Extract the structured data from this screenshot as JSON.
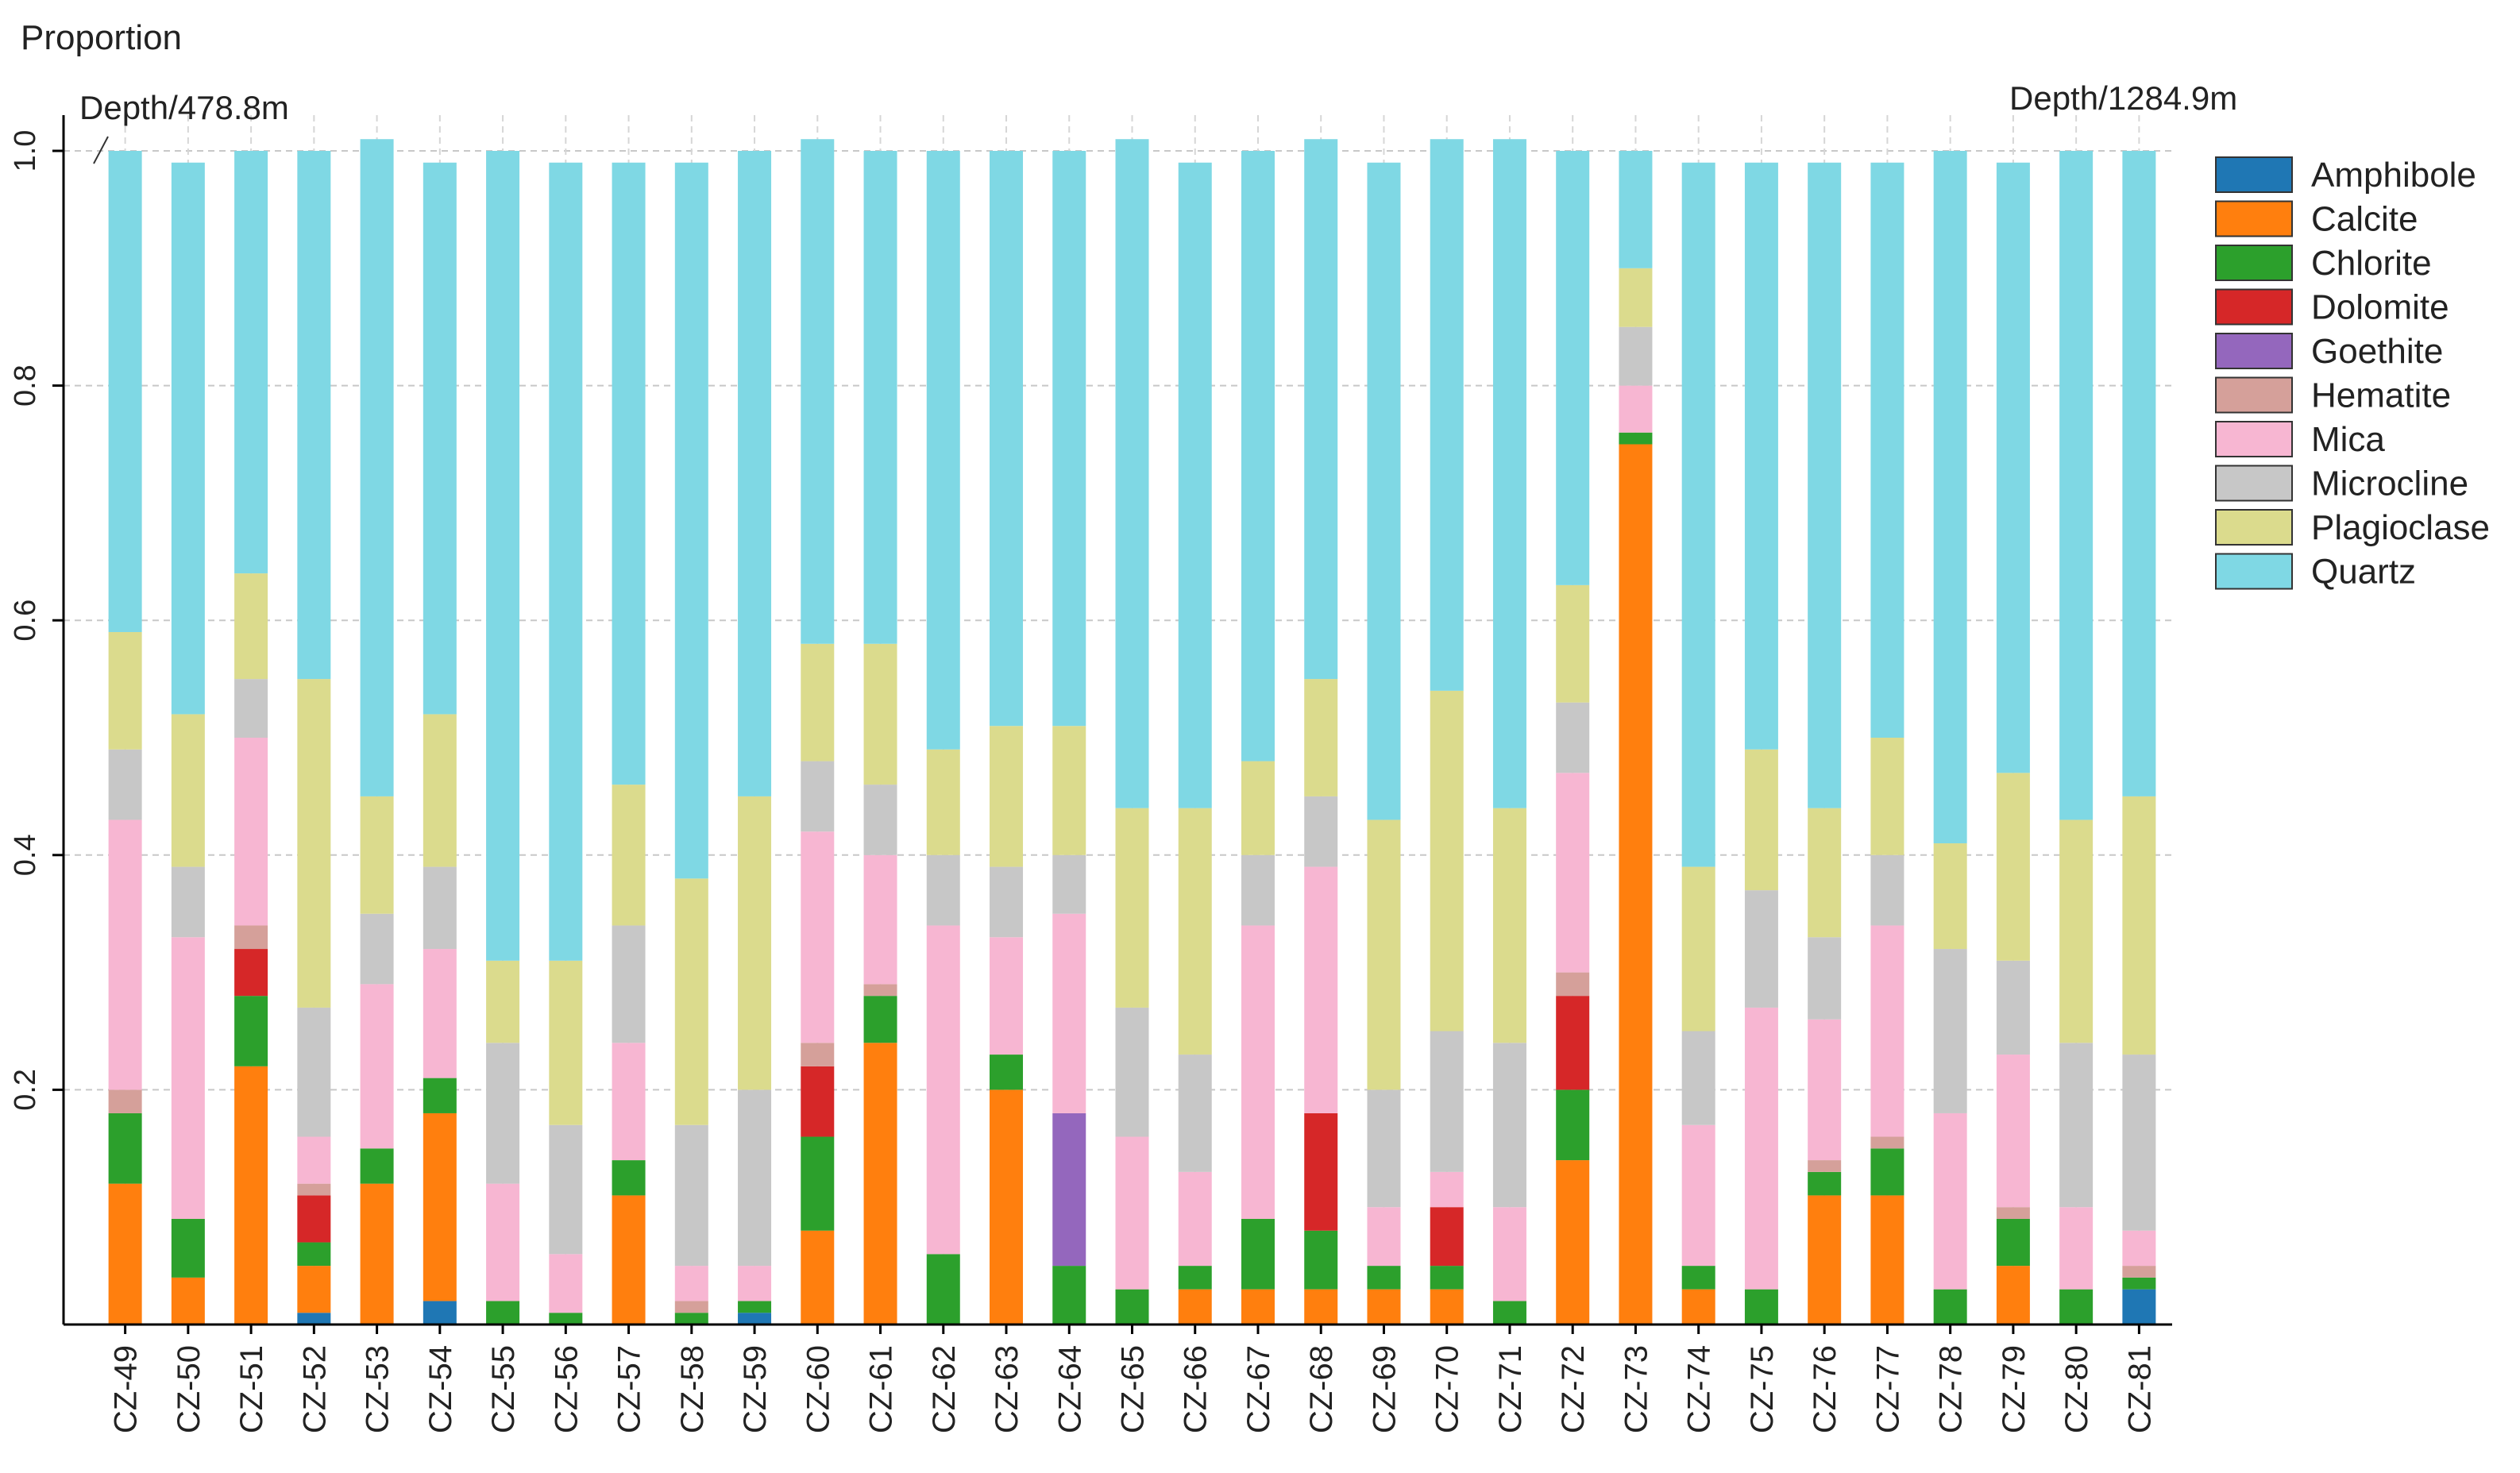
{
  "chart_data": {
    "type": "bar",
    "stacked": true,
    "ylabel": "Proportion",
    "xlabel": "",
    "ylim": [
      0,
      1.0
    ],
    "yticks": [
      0.2,
      0.4,
      0.6,
      0.8,
      1.0
    ],
    "ytick_labels": [
      "0.2",
      "0.4",
      "0.6",
      "0.8",
      "1.0"
    ],
    "grid": true,
    "legend_position": "right",
    "annotations": [
      {
        "text": "Depth/478.8m",
        "anchor_category": "CZ-49"
      },
      {
        "text": "Depth/1284.9m",
        "anchor_category": "CZ-81"
      }
    ],
    "categories": [
      "CZ-49",
      "CZ-50",
      "CZ-51",
      "CZ-52",
      "CZ-53",
      "CZ-54",
      "CZ-55",
      "CZ-56",
      "CZ-57",
      "CZ-58",
      "CZ-59",
      "CZ-60",
      "CZ-61",
      "CZ-62",
      "CZ-63",
      "CZ-64",
      "CZ-65",
      "CZ-66",
      "CZ-67",
      "CZ-68",
      "CZ-69",
      "CZ-70",
      "CZ-71",
      "CZ-72",
      "CZ-73",
      "CZ-74",
      "CZ-75",
      "CZ-76",
      "CZ-77",
      "CZ-78",
      "CZ-79",
      "CZ-80",
      "CZ-81"
    ],
    "series": [
      {
        "name": "Amphibole",
        "color": "#1f77b4",
        "values": [
          0,
          0,
          0,
          0.01,
          0,
          0.02,
          0,
          0,
          0,
          0,
          0.01,
          0,
          0,
          0,
          0,
          0,
          0,
          0,
          0,
          0,
          0,
          0,
          0,
          0,
          0,
          0,
          0,
          0,
          0,
          0,
          0,
          0,
          0.03
        ]
      },
      {
        "name": "Calcite",
        "color": "#ff7f0e",
        "values": [
          0.12,
          0.04,
          0.22,
          0.04,
          0.12,
          0.16,
          0,
          0,
          0.11,
          0,
          0,
          0.08,
          0.24,
          0,
          0.2,
          0,
          0,
          0.03,
          0.03,
          0.03,
          0.03,
          0.03,
          0,
          0.14,
          0.75,
          0.03,
          0,
          0.11,
          0.11,
          0,
          0.05,
          0,
          0
        ]
      },
      {
        "name": "Chlorite",
        "color": "#2ca02c",
        "values": [
          0.06,
          0.05,
          0.06,
          0.02,
          0.03,
          0.03,
          0.02,
          0.01,
          0.03,
          0.01,
          0.01,
          0.08,
          0.04,
          0.06,
          0.03,
          0.05,
          0.03,
          0.02,
          0.06,
          0.05,
          0.02,
          0.02,
          0.02,
          0.06,
          0.01,
          0.02,
          0.03,
          0.02,
          0.04,
          0.03,
          0.04,
          0.03,
          0.01
        ]
      },
      {
        "name": "Dolomite",
        "color": "#d62728",
        "values": [
          0,
          0,
          0.04,
          0.04,
          0,
          0,
          0,
          0,
          0,
          0,
          0,
          0.06,
          0,
          0,
          0,
          0,
          0,
          0,
          0,
          0.1,
          0,
          0.05,
          0,
          0.08,
          0,
          0,
          0,
          0,
          0,
          0,
          0,
          0,
          0
        ]
      },
      {
        "name": "Goethite",
        "color": "#9467bd",
        "values": [
          0,
          0,
          0,
          0,
          0,
          0,
          0,
          0,
          0,
          0,
          0,
          0,
          0,
          0,
          0,
          0.13,
          0,
          0,
          0,
          0,
          0,
          0,
          0,
          0,
          0,
          0,
          0,
          0,
          0,
          0,
          0,
          0,
          0
        ]
      },
      {
        "name": "Hematite",
        "color": "#d5a09a",
        "values": [
          0.02,
          0,
          0.02,
          0.01,
          0,
          0,
          0,
          0,
          0,
          0.01,
          0,
          0.02,
          0.01,
          0,
          0,
          0,
          0,
          0,
          0,
          0,
          0,
          0,
          0,
          0.02,
          0,
          0,
          0,
          0.01,
          0.01,
          0,
          0.01,
          0,
          0.01
        ]
      },
      {
        "name": "Mica",
        "color": "#f7b6d2",
        "values": [
          0.23,
          0.24,
          0.16,
          0.04,
          0.14,
          0.11,
          0.1,
          0.05,
          0.1,
          0.03,
          0.03,
          0.18,
          0.11,
          0.28,
          0.1,
          0.17,
          0.13,
          0.08,
          0.25,
          0.21,
          0.05,
          0.03,
          0.08,
          0.17,
          0.04,
          0.12,
          0.24,
          0.12,
          0.18,
          0.15,
          0.13,
          0.07,
          0.03
        ]
      },
      {
        "name": "Microcline",
        "color": "#c7c7c7",
        "values": [
          0.06,
          0.06,
          0.05,
          0.11,
          0.06,
          0.07,
          0.12,
          0.11,
          0.1,
          0.12,
          0.15,
          0.06,
          0.06,
          0.06,
          0.06,
          0.05,
          0.11,
          0.1,
          0.06,
          0.06,
          0.1,
          0.12,
          0.14,
          0.06,
          0.05,
          0.08,
          0.1,
          0.07,
          0.06,
          0.14,
          0.08,
          0.14,
          0.15
        ]
      },
      {
        "name": "Plagioclase",
        "color": "#dbdb8d",
        "values": [
          0.1,
          0.13,
          0.09,
          0.28,
          0.1,
          0.13,
          0.07,
          0.14,
          0.12,
          0.21,
          0.25,
          0.1,
          0.12,
          0.09,
          0.12,
          0.11,
          0.17,
          0.21,
          0.08,
          0.1,
          0.23,
          0.29,
          0.2,
          0.1,
          0.05,
          0.14,
          0.12,
          0.11,
          0.1,
          0.09,
          0.16,
          0.19,
          0.22
        ]
      },
      {
        "name": "Quartz",
        "color": "#7fd8e4",
        "values": [
          0.41,
          0.47,
          0.36,
          0.45,
          0.56,
          0.47,
          0.69,
          0.68,
          0.53,
          0.61,
          0.55,
          0.43,
          0.42,
          0.51,
          0.49,
          0.49,
          0.57,
          0.55,
          0.52,
          0.46,
          0.56,
          0.47,
          0.57,
          0.37,
          0.1,
          0.6,
          0.5,
          0.55,
          0.49,
          0.59,
          0.52,
          0.57,
          0.55
        ]
      }
    ]
  }
}
